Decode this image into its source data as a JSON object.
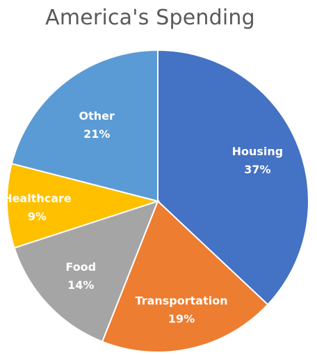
{
  "chart_data": {
    "type": "pie",
    "title": "America's Spending",
    "categories": [
      "Housing",
      "Transportation",
      "Food",
      "Healthcare",
      "Other"
    ],
    "values": [
      37,
      19,
      14,
      9,
      21
    ],
    "value_labels": [
      "37%",
      "19%",
      "14%",
      "9%",
      "21%"
    ],
    "colors": [
      "#4472C4",
      "#ED7D31",
      "#A5A5A5",
      "#FFC000",
      "#5B9BD5"
    ],
    "start_angle_deg": 0,
    "direction": "clockwise",
    "legend": "none",
    "data_labels": "inside"
  }
}
